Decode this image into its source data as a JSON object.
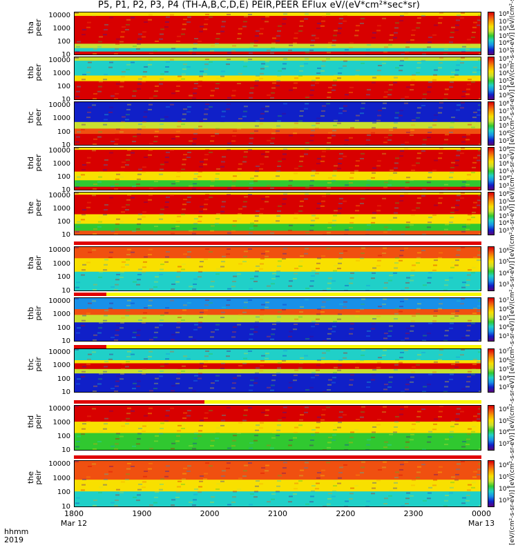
{
  "title": "P5, P1, P2, P3, P4 (TH-A,B,C,D,E) PEIR,PEER EFlux eV/(eV*cm²*sec*sr)",
  "units_label": "[eV/(cm²-s-sr-eV)]  [eV/(cm²-s-sr-eV)]  [eV/(cm²-s-sr-eV)]  [eV/(cm²-s-sr-eV)]  [eV/(cm²-s-sr-eV)]  [eV/(cm²-s-sr-eV)]  [eV/(cm²-s-sr-eV)]  [eV/(cm²-s-sr-eV)]  [eV/(cm²-s-sr-eV)]  [eV/(cm²-s-sr-eV)]",
  "axis": {
    "x_name": "hhmm",
    "x_year": "2019",
    "x_ticks": [
      "1800",
      "1900",
      "2000",
      "2100",
      "2200",
      "2300",
      "0000"
    ],
    "x_dates": [
      "Mar 12",
      "",
      "",
      "",
      "",
      "",
      "Mar 13"
    ],
    "y_ticks": [
      "10",
      "100",
      "1000",
      "10000"
    ]
  },
  "chart_data": [
    {
      "type": "heatmap",
      "label_top": "tha",
      "label_bottom": "peer",
      "ylim": [
        10,
        20000
      ],
      "ylog": true,
      "colorbar": [
        "10³",
        "10⁴",
        "10⁵",
        "10⁶",
        "10⁷",
        "10⁸"
      ]
    },
    {
      "type": "heatmap",
      "label_top": "thb",
      "label_bottom": "peer",
      "ylim": [
        10,
        20000
      ],
      "ylog": true,
      "colorbar": [
        "10³",
        "10⁴",
        "10⁵",
        "10⁶",
        "10⁷",
        "10⁸"
      ]
    },
    {
      "type": "heatmap",
      "label_top": "thc",
      "label_bottom": "peer",
      "ylim": [
        10,
        20000
      ],
      "ylog": true,
      "colorbar": [
        "10³",
        "10⁴",
        "10⁵",
        "10⁶",
        "10⁷",
        "10⁸"
      ]
    },
    {
      "type": "heatmap",
      "label_top": "thd",
      "label_bottom": "peer",
      "ylim": [
        10,
        20000
      ],
      "ylog": true,
      "colorbar": [
        "10³",
        "10⁴",
        "10⁵",
        "10⁶",
        "10⁷",
        "10⁸"
      ]
    },
    {
      "type": "heatmap",
      "label_top": "the",
      "label_bottom": "peer",
      "ylim": [
        10,
        20000
      ],
      "ylog": true,
      "colorbar": [
        "10³",
        "10⁴",
        "10⁵",
        "10⁶",
        "10⁷",
        "10⁸"
      ]
    },
    {
      "type": "heatmap",
      "label_top": "tha",
      "label_bottom": "peir",
      "ylim": [
        10,
        20000
      ],
      "ylog": true,
      "colorbar": [
        "10³",
        "10⁴",
        "10⁵",
        "10⁶"
      ]
    },
    {
      "type": "heatmap",
      "label_top": "thb",
      "label_bottom": "peir",
      "ylim": [
        10,
        20000
      ],
      "ylog": true,
      "colorbar": [
        "10³",
        "10⁴",
        "10⁵",
        "10⁶",
        "10⁷"
      ]
    },
    {
      "type": "heatmap",
      "label_top": "thc",
      "label_bottom": "peir",
      "ylim": [
        10,
        20000
      ],
      "ylog": true,
      "colorbar": [
        "10³",
        "10⁴",
        "10⁵",
        "10⁶",
        "10⁷"
      ]
    },
    {
      "type": "heatmap",
      "label_top": "thd",
      "label_bottom": "peir",
      "ylim": [
        10,
        20000
      ],
      "ylog": true,
      "colorbar": [
        "10³",
        "10⁴",
        "10⁵",
        "10⁶"
      ]
    },
    {
      "type": "heatmap",
      "label_top": "the",
      "label_bottom": "peir",
      "ylim": [
        10,
        20000
      ],
      "ylog": true,
      "colorbar": [
        "10³",
        "10⁴",
        "10⁵",
        "10⁶"
      ]
    }
  ],
  "colors": {
    "scale": [
      "#5a007a",
      "#1020c8",
      "#1890e8",
      "#20d0c8",
      "#30c830",
      "#c8e030",
      "#f8e000",
      "#f8a000",
      "#f05010",
      "#d80000"
    ],
    "flag_red": "#e00000",
    "flag_yellow": "#f8f800"
  }
}
